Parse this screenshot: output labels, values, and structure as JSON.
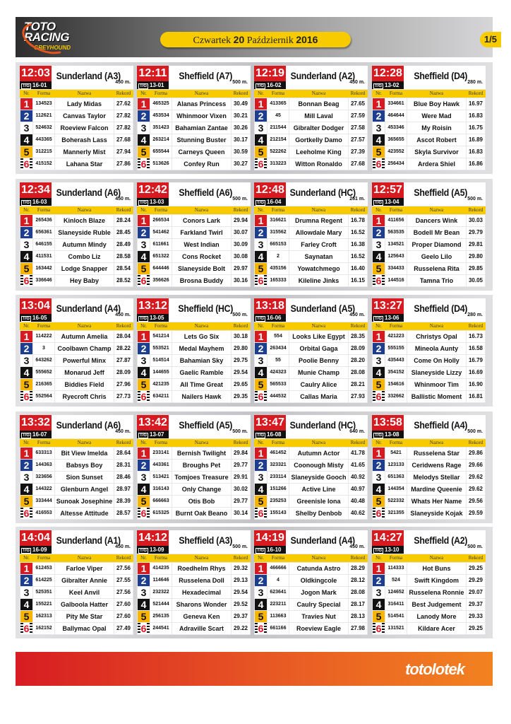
{
  "header": {
    "logo_line1": "TOTO",
    "logo_line2": "RACING",
    "logo_line3": "GREYHOUND",
    "day": "Czwartek",
    "date_num": "20",
    "month": "Październik",
    "year": "2016",
    "page": "1/5"
  },
  "columns": {
    "nr": "Nr.",
    "forma": "Forma",
    "nazwa": "Nazwa",
    "rekord": "Rekord"
  },
  "tg_label": "T/G",
  "colors": {
    "red": "#d71920",
    "blue": "#1d3e8e",
    "yellow": "#f7cb00",
    "black": "#111111"
  },
  "footer": {
    "brand": "totolotek"
  },
  "races": [
    {
      "time": "12:03",
      "track": "Sunderland (A3)",
      "code": "16-01",
      "distance": "450 m.",
      "runners": [
        [
          "134523",
          "Lady Midas",
          "27.62"
        ],
        [
          "112621",
          "Canvas Taylor",
          "27.82"
        ],
        [
          "524632",
          "Roeview Falcon",
          "27.82"
        ],
        [
          "443365",
          "Boherash Lass",
          "27.68"
        ],
        [
          "312215",
          "Mannerly Mist",
          "27.94"
        ],
        [
          "415152",
          "Lahana Star",
          "27.86"
        ]
      ]
    },
    {
      "time": "12:11",
      "track": "Sheffield (A7)",
      "code": "13-01",
      "distance": "500 m.",
      "runners": [
        [
          "465325",
          "Alanas Princess",
          "30.49"
        ],
        [
          "453534",
          "Whinmoor Vixen",
          "30.21"
        ],
        [
          "351423",
          "Bahamian Zantae",
          "30.26"
        ],
        [
          "263214",
          "Stunning Buster",
          "30.17"
        ],
        [
          "655544",
          "Carneys Queen",
          "30.59"
        ],
        [
          "513626",
          "Confey Run",
          "30.27"
        ]
      ]
    },
    {
      "time": "12:19",
      "track": "Sunderland (A2)",
      "code": "16-02",
      "distance": "450 m.",
      "runners": [
        [
          "413365",
          "Bonnan Beag",
          "27.65"
        ],
        [
          "45",
          "Mill Laval",
          "27.59"
        ],
        [
          "211544",
          "Gibralter Dodger",
          "27.58"
        ],
        [
          "212154",
          "Gortkelly Damo",
          "27.57"
        ],
        [
          "522262",
          "Leeholme King",
          "27.39"
        ],
        [
          "313223",
          "Witton Ronaldo",
          "27.68"
        ]
      ]
    },
    {
      "time": "12:28",
      "track": "Sheffield (D4)",
      "code": "13-02",
      "distance": "280 m.",
      "runners": [
        [
          "334661",
          "Blue Boy Hawk",
          "16.97"
        ],
        [
          "464644",
          "Were Mad",
          "16.83"
        ],
        [
          "453346",
          "My Roisin",
          "16.75"
        ],
        [
          "365655",
          "Ascot Robert",
          "16.89"
        ],
        [
          "423552",
          "Skyla Survivor",
          "16.83"
        ],
        [
          "256434",
          "Ardera Shiel",
          "16.86"
        ]
      ]
    },
    {
      "time": "12:34",
      "track": "Sunderland (A6)",
      "code": "16-03",
      "distance": "450 m.",
      "runners": [
        [
          "265436",
          "Kinloch Blaze",
          "28.24"
        ],
        [
          "656361",
          "Slaneyside Ruble",
          "28.45"
        ],
        [
          "646155",
          "Autumn Mindy",
          "28.49"
        ],
        [
          "411531",
          "Combo Liz",
          "28.58"
        ],
        [
          "163442",
          "Lodge Snapper",
          "28.54"
        ],
        [
          "336646",
          "Hey Baby",
          "28.52"
        ]
      ]
    },
    {
      "time": "12:42",
      "track": "Sheffield (A6)",
      "code": "13-03",
      "distance": "500 m.",
      "runners": [
        [
          "266534",
          "Conors Lark",
          "29.94"
        ],
        [
          "541462",
          "Farkland Twirl",
          "30.07"
        ],
        [
          "611661",
          "West Indian",
          "30.09"
        ],
        [
          "651322",
          "Cons Rocket",
          "30.08"
        ],
        [
          "644446",
          "Slaneyside Bolt",
          "29.97"
        ],
        [
          "356626",
          "Brosna Buddy",
          "30.16"
        ]
      ]
    },
    {
      "time": "12:48",
      "track": "Sunderland (HC)",
      "code": "16-04",
      "distance": "261 m.",
      "runners": [
        [
          "316621",
          "Drumna Regent",
          "16.78"
        ],
        [
          "315562",
          "Allowdale Mary",
          "16.52"
        ],
        [
          "665153",
          "Farley Croft",
          "16.38"
        ],
        [
          "2",
          "Saynatan",
          "16.52"
        ],
        [
          "435156",
          "Yowatchmego",
          "16.40"
        ],
        [
          "165333",
          "Kileline Jinks",
          "16.15"
        ]
      ]
    },
    {
      "time": "12:57",
      "track": "Sheffield (A5)",
      "code": "13-04",
      "distance": "500 m.",
      "runners": [
        [
          "411656",
          "Dancers Wink",
          "30.03"
        ],
        [
          "563535",
          "Bodell Mr Bean",
          "29.79"
        ],
        [
          "134521",
          "Proper Diamond",
          "29.81"
        ],
        [
          "125643",
          "Geelo Lilo",
          "29.80"
        ],
        [
          "334433",
          "Russelena Rita",
          "29.85"
        ],
        [
          "144516",
          "Tamna Trio",
          "30.05"
        ]
      ]
    },
    {
      "time": "13:04",
      "track": "Sunderland (A4)",
      "code": "16-05",
      "distance": "450 m.",
      "runners": [
        [
          "114222",
          "Autumn Amelia",
          "28.04"
        ],
        [
          "3",
          "Coolbawn Champ",
          "28.22"
        ],
        [
          "643262",
          "Powerful Minx",
          "27.87"
        ],
        [
          "555652",
          "Monarud Jeff",
          "28.09"
        ],
        [
          "216365",
          "Biddies Field",
          "27.96"
        ],
        [
          "552564",
          "Ryecroft Chris",
          "27.73"
        ]
      ]
    },
    {
      "time": "13:12",
      "track": "Sheffield (HC)",
      "code": "13-05",
      "distance": "500 m.",
      "runners": [
        [
          "541214",
          "Lets Go Six",
          "30.18"
        ],
        [
          "553521",
          "Medal Mayhem",
          "29.80"
        ],
        [
          "514514",
          "Bahamian Sky",
          "29.75"
        ],
        [
          "144655",
          "Gaelic Ramble",
          "29.54"
        ],
        [
          "421235",
          "All Time Great",
          "29.65"
        ],
        [
          "634211",
          "Nailers Hawk",
          "29.35"
        ]
      ]
    },
    {
      "time": "13:18",
      "track": "Sunderland (A5)",
      "code": "16-06",
      "distance": "450 m.",
      "runners": [
        [
          "554",
          "Looks Like Egypt",
          "28.35"
        ],
        [
          "263434",
          "Orbital Gaga",
          "28.09"
        ],
        [
          "55",
          "Poolie Benny",
          "28.20"
        ],
        [
          "424323",
          "Munie Champ",
          "28.08"
        ],
        [
          "565533",
          "Caulry Alice",
          "28.21"
        ],
        [
          "444532",
          "Callas Maria",
          "27.93"
        ]
      ]
    },
    {
      "time": "13:27",
      "track": "Sheffield (D4)",
      "code": "13-06",
      "distance": "280 m.",
      "runners": [
        [
          "421223",
          "Christys Opal",
          "16.73"
        ],
        [
          "555155",
          "Mineola Aunty",
          "16.58"
        ],
        [
          "435443",
          "Come On Holly",
          "16.79"
        ],
        [
          "354152",
          "Slaneyside Lizzy",
          "16.69"
        ],
        [
          "154616",
          "Whinmoor Tim",
          "16.90"
        ],
        [
          "332662",
          "Ballistic Moment",
          "16.81"
        ]
      ]
    },
    {
      "time": "13:32",
      "track": "Sunderland (A6)",
      "code": "16-07",
      "distance": "450 m.",
      "runners": [
        [
          "633313",
          "Bit View Imelda",
          "28.64"
        ],
        [
          "144363",
          "Babsys Boy",
          "28.31"
        ],
        [
          "323656",
          "Sion Sunset",
          "28.46"
        ],
        [
          "144322",
          "Glenburn Angel",
          "28.97"
        ],
        [
          "333444",
          "Sunoak Josephine",
          "28.39"
        ],
        [
          "416553",
          "Altesse Attitude",
          "28.57"
        ]
      ]
    },
    {
      "time": "13:42",
      "track": "Sheffield (A5)",
      "code": "13-07",
      "distance": "500 m.",
      "runners": [
        [
          "233141",
          "Bernish Twilight",
          "29.84"
        ],
        [
          "443361",
          "Broughs Pet",
          "29.77"
        ],
        [
          "513421",
          "Tomjoes Treasure",
          "29.91"
        ],
        [
          "316143",
          "Only Change",
          "30.02"
        ],
        [
          "666663",
          "Otis Bob",
          "29.77"
        ],
        [
          "615325",
          "Burnt Oak Beano",
          "30.14"
        ]
      ]
    },
    {
      "time": "13:47",
      "track": "Sunderland (HC)",
      "code": "16-08",
      "distance": "640 m.",
      "runners": [
        [
          "461452",
          "Autumn Actor",
          "41.78"
        ],
        [
          "323321",
          "Coonough Misty",
          "41.65"
        ],
        [
          "233114",
          "Slaneyside Gooch",
          "40.92"
        ],
        [
          "151266",
          "Active Line",
          "40.97"
        ],
        [
          "235253",
          "Greenisle Iona",
          "40.48"
        ],
        [
          "155143",
          "Shelby Denbob",
          "40.62"
        ]
      ]
    },
    {
      "time": "13:58",
      "track": "Sheffield (A4)",
      "code": "13-08",
      "distance": "500 m.",
      "runners": [
        [
          "5421",
          "Russelena Star",
          "29.86"
        ],
        [
          "123133",
          "Ceridwens Rage",
          "29.66"
        ],
        [
          "651363",
          "Melodys Stellar",
          "29.62"
        ],
        [
          "144354",
          "Mardine Queenie",
          "29.62"
        ],
        [
          "522332",
          "Whats Her Name",
          "29.56"
        ],
        [
          "321355",
          "Slaneyside Kojak",
          "29.59"
        ]
      ]
    },
    {
      "time": "14:04",
      "track": "Sunderland (A1)",
      "code": "16-09",
      "distance": "450 m.",
      "runners": [
        [
          "612453",
          "Farloe Viper",
          "27.56"
        ],
        [
          "614225",
          "Gibralter Annie",
          "27.55"
        ],
        [
          "525351",
          "Keel Anvil",
          "27.56"
        ],
        [
          "155221",
          "Galboola Hatter",
          "27.60"
        ],
        [
          "162313",
          "Pity Me Star",
          "27.60"
        ],
        [
          "162152",
          "Ballymac Opal",
          "27.49"
        ]
      ]
    },
    {
      "time": "14:12",
      "track": "Sheffield (A3)",
      "code": "13-09",
      "distance": "500 m.",
      "runners": [
        [
          "414235",
          "Roedhelm Rhys",
          "29.32"
        ],
        [
          "114646",
          "Russelena Doll",
          "29.13"
        ],
        [
          "232322",
          "Hexadecimal",
          "29.54"
        ],
        [
          "521444",
          "Sharons Wonder",
          "29.52"
        ],
        [
          "256135",
          "Geneva Ken",
          "29.37"
        ],
        [
          "244541",
          "Adraville Scart",
          "29.22"
        ]
      ]
    },
    {
      "time": "14:19",
      "track": "Sunderland (A4)",
      "code": "16-10",
      "distance": "450 m.",
      "runners": [
        [
          "466666",
          "Catunda Astro",
          "28.29"
        ],
        [
          "4",
          "Oldkingcole",
          "28.12"
        ],
        [
          "623641",
          "Jogon Mark",
          "28.08"
        ],
        [
          "223211",
          "Caulry Special",
          "28.17"
        ],
        [
          "113663",
          "Travies Nut",
          "28.13"
        ],
        [
          "661166",
          "Roeview Eagle",
          "27.98"
        ]
      ]
    },
    {
      "time": "14:27",
      "track": "Sheffield (A2)",
      "code": "13-10",
      "distance": "500 m.",
      "runners": [
        [
          "114333",
          "Hot Buns",
          "29.25"
        ],
        [
          "524",
          "Swift Kingdom",
          "29.29"
        ],
        [
          "124652",
          "Russelena Ronnie",
          "29.07"
        ],
        [
          "316411",
          "Best Judgement",
          "29.37"
        ],
        [
          "514541",
          "Lanody More",
          "29.33"
        ],
        [
          "131521",
          "Kildare Acer",
          "29.25"
        ]
      ]
    }
  ]
}
